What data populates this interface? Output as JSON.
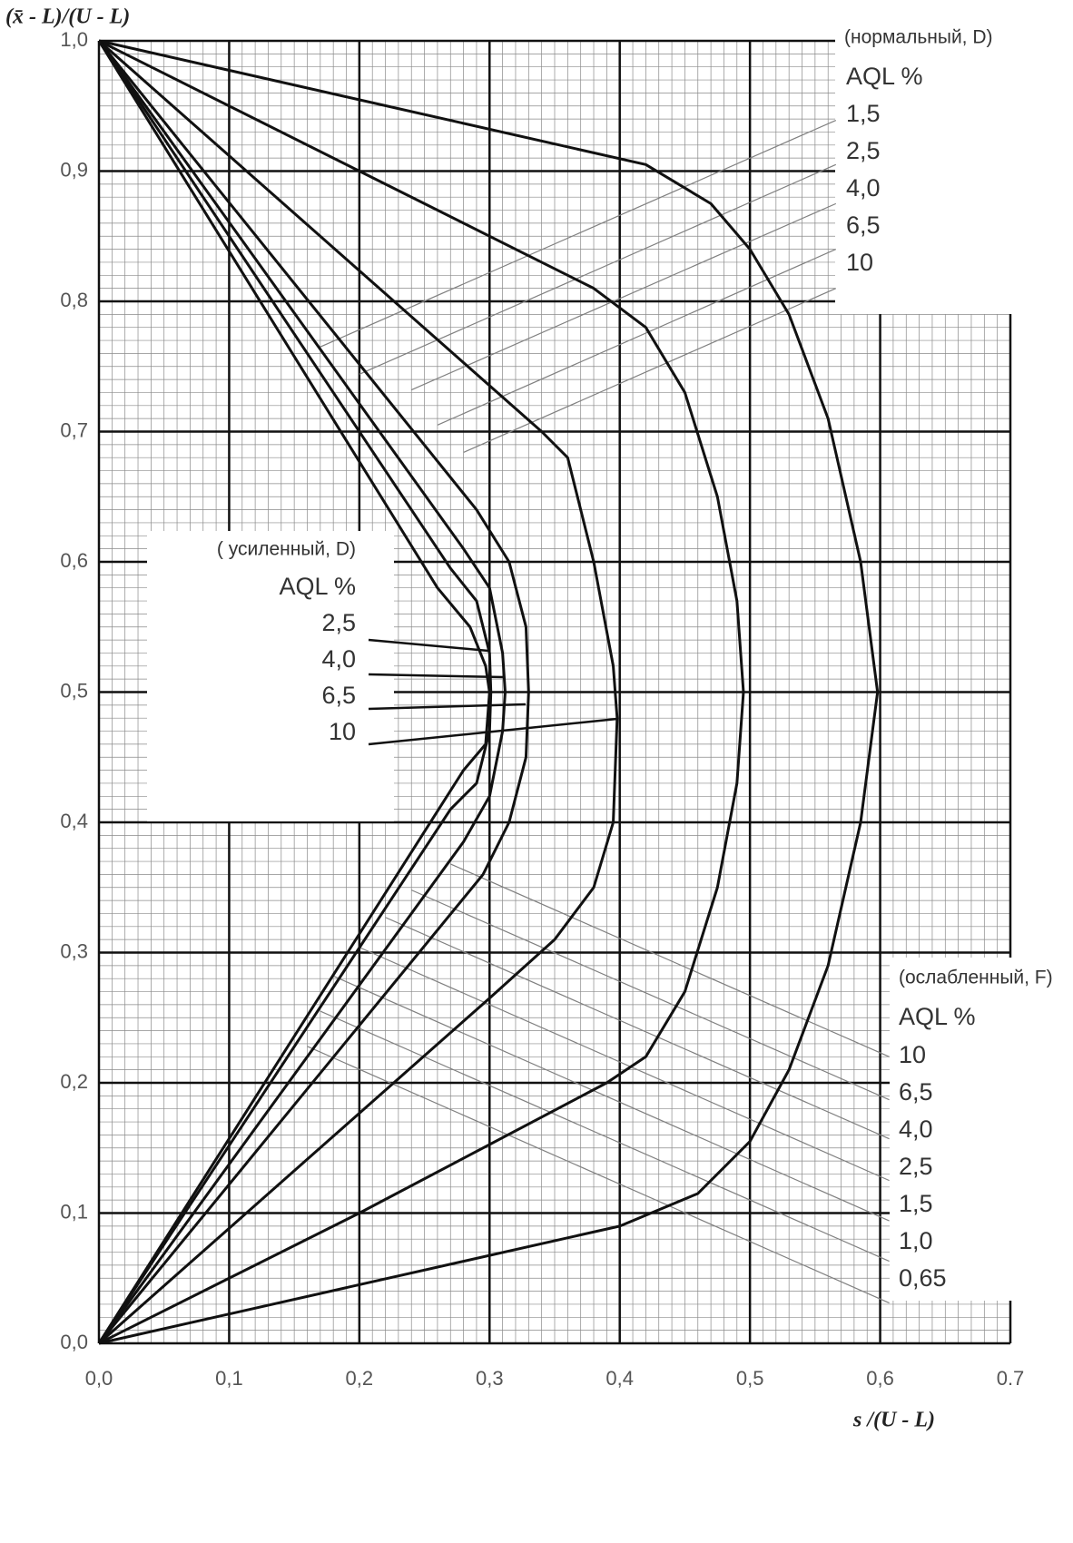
{
  "chart_data": {
    "type": "line",
    "y_label": "(x̄ - L)/(U - L)",
    "x_label": "s /(U - L)",
    "xlim": [
      0,
      0.7
    ],
    "ylim": [
      0,
      1
    ],
    "xticks": [
      {
        "value": 0,
        "label": "0,0"
      },
      {
        "value": 0.1,
        "label": "0,1"
      },
      {
        "value": 0.2,
        "label": "0,2"
      },
      {
        "value": 0.3,
        "label": "0,3"
      },
      {
        "value": 0.4,
        "label": "0,4"
      },
      {
        "value": 0.5,
        "label": "0,5"
      },
      {
        "value": 0.6,
        "label": "0,6"
      },
      {
        "value": 0.7,
        "label": "0.7"
      }
    ],
    "yticks": [
      {
        "value": 0,
        "label": "0,0"
      },
      {
        "value": 0.1,
        "label": "0,1"
      },
      {
        "value": 0.2,
        "label": "0,2"
      },
      {
        "value": 0.3,
        "label": "0,3"
      },
      {
        "value": 0.4,
        "label": "0,4"
      },
      {
        "value": 0.5,
        "label": "0,5"
      },
      {
        "value": 0.6,
        "label": "0,6"
      },
      {
        "value": 0.7,
        "label": "0,7"
      },
      {
        "value": 0.8,
        "label": "0,8"
      },
      {
        "value": 0.9,
        "label": "0,9"
      },
      {
        "value": 1,
        "label": "1,0"
      }
    ],
    "grid": true,
    "color": "#111111",
    "ref_color": "#808080",
    "series": [
      {
        "x": [
          0,
          0.42,
          0.47,
          0.5,
          0.53,
          0.56,
          0.585,
          0.598,
          0.585,
          0.56,
          0.53,
          0.5,
          0.46,
          0.4,
          0
        ],
        "values": [
          1,
          0.905,
          0.875,
          0.84,
          0.79,
          0.71,
          0.6,
          0.5,
          0.4,
          0.29,
          0.21,
          0.155,
          0.115,
          0.09,
          0
        ]
      },
      {
        "x": [
          0,
          0.2,
          0.38,
          0.42,
          0.45,
          0.475,
          0.49,
          0.495,
          0.49,
          0.475,
          0.45,
          0.42,
          0.39,
          0.2,
          0
        ],
        "values": [
          1,
          0.9,
          0.81,
          0.78,
          0.73,
          0.65,
          0.57,
          0.5,
          0.43,
          0.35,
          0.27,
          0.22,
          0.2,
          0.1,
          0
        ]
      },
      {
        "x": [
          0,
          0.34,
          0.36,
          0.38,
          0.395,
          0.398,
          0.395,
          0.38,
          0.35,
          0.3,
          0
        ],
        "values": [
          1,
          0.7,
          0.68,
          0.6,
          0.52,
          0.48,
          0.4,
          0.35,
          0.31,
          0.265,
          0
        ]
      },
      {
        "x": [
          0,
          0.29,
          0.315,
          0.328,
          0.33,
          0.328,
          0.315,
          0.295,
          0
        ],
        "values": [
          1,
          0.64,
          0.6,
          0.55,
          0.5,
          0.45,
          0.4,
          0.36,
          0
        ]
      },
      {
        "x": [
          0,
          0.28,
          0.3,
          0.31,
          0.312,
          0.31,
          0.3,
          0.28,
          0
        ],
        "values": [
          1,
          0.61,
          0.58,
          0.53,
          0.5,
          0.47,
          0.42,
          0.385,
          0
        ]
      },
      {
        "x": [
          0,
          0.27,
          0.29,
          0.3,
          0.301,
          0.3,
          0.29,
          0.27,
          0
        ],
        "values": [
          1,
          0.595,
          0.57,
          0.53,
          0.5,
          0.47,
          0.43,
          0.41,
          0
        ]
      },
      {
        "x": [
          0,
          0.26,
          0.285,
          0.297,
          0.3,
          0.297,
          0.28,
          0
        ],
        "values": [
          1,
          0.58,
          0.55,
          0.52,
          0.5,
          0.46,
          0.44,
          0
        ]
      }
    ],
    "normal": {
      "title": "(нормальный, D)",
      "header": "AQL %",
      "lines": [
        {
          "label": "1,5",
          "x": [
            0.17,
            0.566
          ],
          "values": [
            0.765,
            0.939
          ]
        },
        {
          "label": "2,5",
          "x": [
            0.2,
            0.566
          ],
          "values": [
            0.744,
            0.905
          ]
        },
        {
          "label": "4,0",
          "x": [
            0.24,
            0.566
          ],
          "values": [
            0.732,
            0.875
          ]
        },
        {
          "label": "6,5",
          "x": [
            0.26,
            0.566
          ],
          "values": [
            0.705,
            0.84
          ]
        },
        {
          "label": "10",
          "x": [
            0.28,
            0.566
          ],
          "values": [
            0.684,
            0.81
          ]
        }
      ]
    },
    "tightened": {
      "title": "( усиленный, D)",
      "header": "AQL %",
      "labels": [
        "2,5",
        "4,0",
        "6,5",
        "10"
      ]
    },
    "reduced": {
      "title": "(ослабленный, F)",
      "header": "AQL %",
      "lines": [
        {
          "label": "10",
          "x": [
            0.27,
            0.607
          ],
          "values": [
            0.368,
            0.22
          ]
        },
        {
          "label": "6,5",
          "x": [
            0.24,
            0.607
          ],
          "values": [
            0.348,
            0.187
          ]
        },
        {
          "label": "4,0",
          "x": [
            0.22,
            0.607
          ],
          "values": [
            0.327,
            0.157
          ]
        },
        {
          "label": "2,5",
          "x": [
            0.2,
            0.607
          ],
          "values": [
            0.304,
            0.125
          ]
        },
        {
          "label": "1,5",
          "x": [
            0.18,
            0.607
          ],
          "values": [
            0.282,
            0.094
          ]
        },
        {
          "label": "1,0",
          "x": [
            0.17,
            0.607
          ],
          "values": [
            0.255,
            0.063
          ]
        },
        {
          "label": "0,65",
          "x": [
            0.16,
            0.607
          ],
          "values": [
            0.228,
            0.031
          ]
        }
      ]
    }
  }
}
